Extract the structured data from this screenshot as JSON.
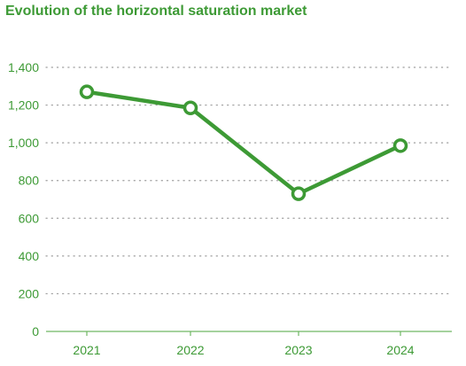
{
  "chart_data": {
    "type": "line",
    "title": "Evolution of the horizontal saturation market",
    "xlabel": "",
    "ylabel": "",
    "categories": [
      "2021",
      "2022",
      "2023",
      "2024"
    ],
    "series": [
      {
        "values": [
          1270,
          1185,
          730,
          985
        ]
      }
    ],
    "ylim": [
      0,
      1400
    ],
    "yticks": [
      0,
      200,
      400,
      600,
      800,
      1000,
      1200,
      1400
    ],
    "ytick_labels": [
      "0",
      "200",
      "400",
      "600",
      "800",
      "1,000",
      "1,200",
      "1,400"
    ],
    "grid": "horizontal-dotted",
    "legend": "none",
    "colors": {
      "line": "#3d9a35",
      "text": "#3d9a35",
      "grid": "#9e9e9e",
      "axis": "#6fb864",
      "marker_fill": "#ffffff"
    }
  }
}
